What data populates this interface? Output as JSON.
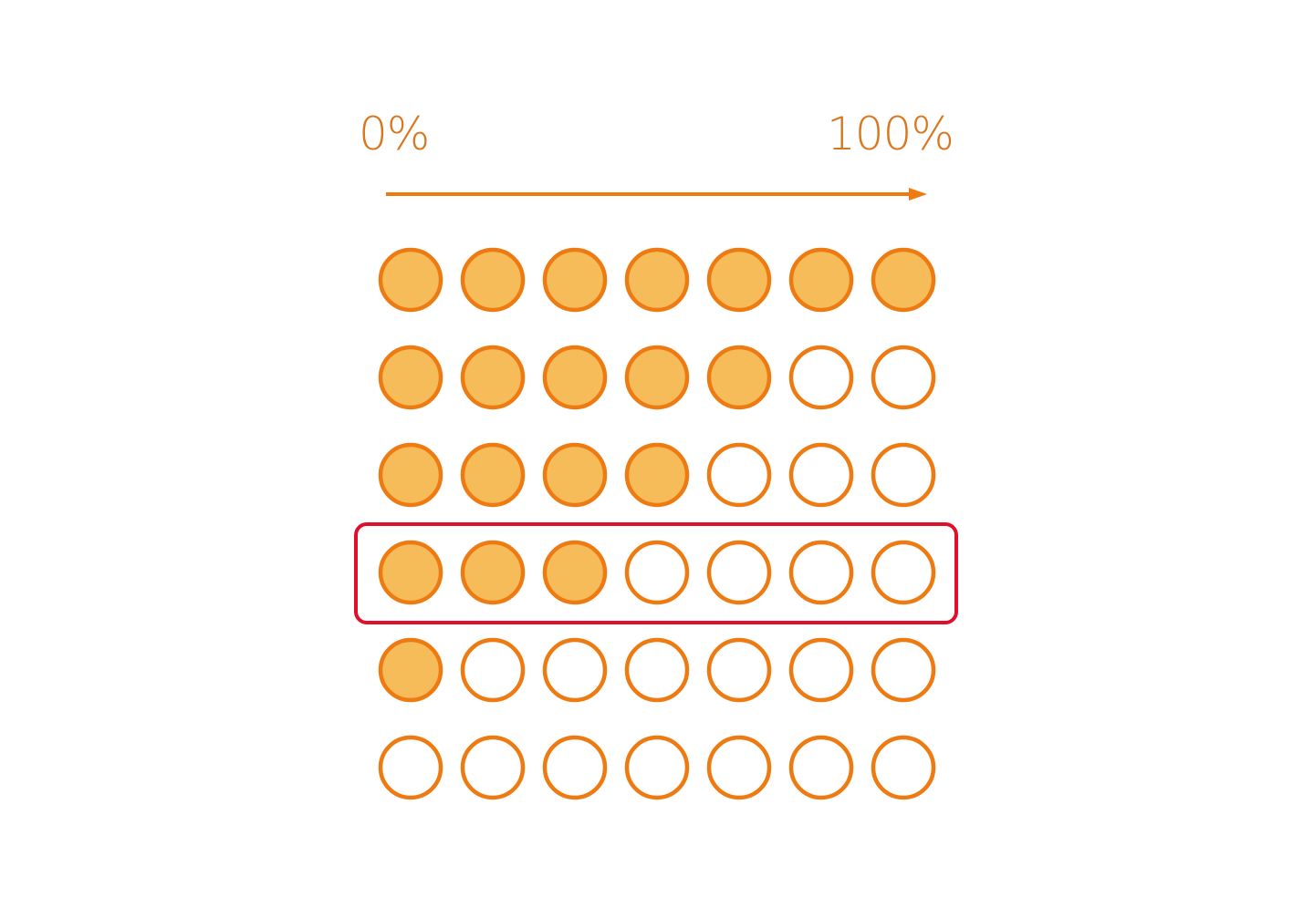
{
  "scale": {
    "min_label": "0%",
    "max_label": "100%"
  },
  "colors": {
    "stroke": "#EE7A12",
    "fill": "#F7BC5A",
    "text": "#D9771F",
    "highlight": "#E0102A",
    "empty": "#FFFFFF"
  },
  "grid": {
    "columns": 7,
    "rows_filled": [
      7,
      5,
      4,
      3,
      1,
      0
    ],
    "highlighted_row": 4
  }
}
